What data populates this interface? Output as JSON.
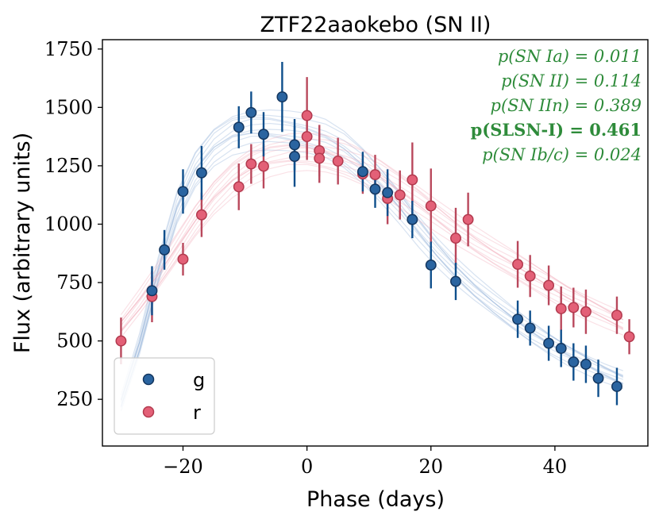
{
  "chart_data": {
    "type": "scatter",
    "title": "ZTF22aaokebo (SN II)",
    "xlabel": "Phase (days)",
    "ylabel": "Flux (arbitrary units)",
    "xlim": [
      -33,
      55
    ],
    "ylim": [
      50,
      1790
    ],
    "xticks": [
      -20,
      0,
      20,
      40
    ],
    "xtick_labels": [
      "−20",
      "0",
      "20",
      "40"
    ],
    "yticks": [
      250,
      500,
      750,
      1000,
      1250,
      1500,
      1750
    ],
    "ytick_labels": [
      "250",
      "500",
      "750",
      "1000",
      "1250",
      "1500",
      "1750"
    ],
    "legend_position": "bottom-left",
    "series": [
      {
        "name": "g",
        "color": "#2a64a0",
        "edge": "#13365f",
        "err_color": "#0f4f8c",
        "band_color": "#8fb0d6",
        "points": [
          {
            "x": -25,
            "y": 715,
            "err": 105
          },
          {
            "x": -23,
            "y": 890,
            "err": 85
          },
          {
            "x": -20,
            "y": 1140,
            "err": 95
          },
          {
            "x": -17,
            "y": 1220,
            "err": 115
          },
          {
            "x": -11,
            "y": 1415,
            "err": 90
          },
          {
            "x": -9,
            "y": 1478,
            "err": 90
          },
          {
            "x": -7,
            "y": 1385,
            "err": 95
          },
          {
            "x": -4,
            "y": 1545,
            "err": 150
          },
          {
            "x": -2,
            "y": 1340,
            "err": 110
          },
          {
            "x": -2,
            "y": 1290,
            "err": 130
          },
          {
            "x": 9,
            "y": 1225,
            "err": 85
          },
          {
            "x": 11,
            "y": 1150,
            "err": 80
          },
          {
            "x": 13,
            "y": 1135,
            "err": 100
          },
          {
            "x": 17,
            "y": 1020,
            "err": 80
          },
          {
            "x": 20,
            "y": 825,
            "err": 100
          },
          {
            "x": 24,
            "y": 755,
            "err": 80
          },
          {
            "x": 34,
            "y": 593,
            "err": 80
          },
          {
            "x": 36,
            "y": 555,
            "err": 75
          },
          {
            "x": 39,
            "y": 490,
            "err": 75
          },
          {
            "x": 41,
            "y": 468,
            "err": 80
          },
          {
            "x": 43,
            "y": 410,
            "err": 80
          },
          {
            "x": 45,
            "y": 400,
            "err": 80
          },
          {
            "x": 47,
            "y": 340,
            "err": 80
          },
          {
            "x": 50,
            "y": 305,
            "err": 80
          }
        ],
        "model": [
          {
            "x": -30,
            "y": 230
          },
          {
            "x": -27,
            "y": 480
          },
          {
            "x": -24,
            "y": 790
          },
          {
            "x": -21,
            "y": 1060
          },
          {
            "x": -18,
            "y": 1230
          },
          {
            "x": -15,
            "y": 1330
          },
          {
            "x": -12,
            "y": 1385
          },
          {
            "x": -9,
            "y": 1405
          },
          {
            "x": -6,
            "y": 1405
          },
          {
            "x": -3,
            "y": 1395
          },
          {
            "x": 0,
            "y": 1380
          },
          {
            "x": 3,
            "y": 1355
          },
          {
            "x": 6,
            "y": 1310
          },
          {
            "x": 9,
            "y": 1245
          },
          {
            "x": 12,
            "y": 1165
          },
          {
            "x": 15,
            "y": 1075
          },
          {
            "x": 18,
            "y": 975
          },
          {
            "x": 21,
            "y": 880
          },
          {
            "x": 24,
            "y": 795
          },
          {
            "x": 27,
            "y": 720
          },
          {
            "x": 30,
            "y": 655
          },
          {
            "x": 33,
            "y": 595
          },
          {
            "x": 36,
            "y": 540
          },
          {
            "x": 39,
            "y": 490
          },
          {
            "x": 42,
            "y": 445
          },
          {
            "x": 45,
            "y": 405
          },
          {
            "x": 48,
            "y": 365
          },
          {
            "x": 51,
            "y": 330
          }
        ]
      },
      {
        "name": "r",
        "color": "#e36077",
        "edge": "#b23a4e",
        "err_color": "#b9485c",
        "band_color": "#f2aab6",
        "points": [
          {
            "x": -30,
            "y": 500,
            "err": 100
          },
          {
            "x": -25,
            "y": 690,
            "err": 110
          },
          {
            "x": -20,
            "y": 850,
            "err": 70
          },
          {
            "x": -17,
            "y": 1040,
            "err": 95
          },
          {
            "x": -11,
            "y": 1160,
            "err": 100
          },
          {
            "x": -9,
            "y": 1258,
            "err": 85
          },
          {
            "x": -7,
            "y": 1248,
            "err": 95
          },
          {
            "x": 0,
            "y": 1465,
            "err": 165
          },
          {
            "x": 0,
            "y": 1375,
            "err": 100
          },
          {
            "x": 2,
            "y": 1315,
            "err": 110
          },
          {
            "x": 2,
            "y": 1282,
            "err": 105
          },
          {
            "x": 5,
            "y": 1270,
            "err": 100
          },
          {
            "x": 9,
            "y": 1215,
            "err": 85
          },
          {
            "x": 11,
            "y": 1212,
            "err": 85
          },
          {
            "x": 13,
            "y": 1110,
            "err": 110
          },
          {
            "x": 15,
            "y": 1125,
            "err": 105
          },
          {
            "x": 17,
            "y": 1190,
            "err": 160
          },
          {
            "x": 20,
            "y": 1078,
            "err": 160
          },
          {
            "x": 24,
            "y": 940,
            "err": 130
          },
          {
            "x": 26,
            "y": 1020,
            "err": 115
          },
          {
            "x": 34,
            "y": 828,
            "err": 100
          },
          {
            "x": 36,
            "y": 778,
            "err": 90
          },
          {
            "x": 39,
            "y": 738,
            "err": 85
          },
          {
            "x": 41,
            "y": 638,
            "err": 95
          },
          {
            "x": 43,
            "y": 643,
            "err": 85
          },
          {
            "x": 45,
            "y": 625,
            "err": 95
          },
          {
            "x": 50,
            "y": 610,
            "err": 80
          },
          {
            "x": 52,
            "y": 518,
            "err": 75
          }
        ],
        "model": [
          {
            "x": -30,
            "y": 560
          },
          {
            "x": -27,
            "y": 660
          },
          {
            "x": -24,
            "y": 770
          },
          {
            "x": -21,
            "y": 890
          },
          {
            "x": -18,
            "y": 1010
          },
          {
            "x": -15,
            "y": 1115
          },
          {
            "x": -12,
            "y": 1195
          },
          {
            "x": -9,
            "y": 1250
          },
          {
            "x": -6,
            "y": 1285
          },
          {
            "x": -3,
            "y": 1300
          },
          {
            "x": 0,
            "y": 1300
          },
          {
            "x": 3,
            "y": 1290
          },
          {
            "x": 6,
            "y": 1270
          },
          {
            "x": 9,
            "y": 1240
          },
          {
            "x": 12,
            "y": 1200
          },
          {
            "x": 15,
            "y": 1150
          },
          {
            "x": 18,
            "y": 1095
          },
          {
            "x": 21,
            "y": 1035
          },
          {
            "x": 24,
            "y": 975
          },
          {
            "x": 27,
            "y": 920
          },
          {
            "x": 30,
            "y": 870
          },
          {
            "x": 33,
            "y": 825
          },
          {
            "x": 36,
            "y": 780
          },
          {
            "x": 39,
            "y": 735
          },
          {
            "x": 42,
            "y": 690
          },
          {
            "x": 45,
            "y": 650
          },
          {
            "x": 48,
            "y": 610
          },
          {
            "x": 51,
            "y": 570
          }
        ]
      }
    ],
    "annotations": [
      {
        "text": "p(SN Ia) = 0.011",
        "bold": false
      },
      {
        "text": "p(SN II) = 0.114",
        "bold": false
      },
      {
        "text": "p(SN IIn) = 0.389",
        "bold": false
      },
      {
        "text": "p(SLSN-I) = 0.461",
        "bold": true
      },
      {
        "text": "p(SN Ib/c) = 0.024",
        "bold": false
      }
    ],
    "annotation_color": "#2e8b3a"
  }
}
